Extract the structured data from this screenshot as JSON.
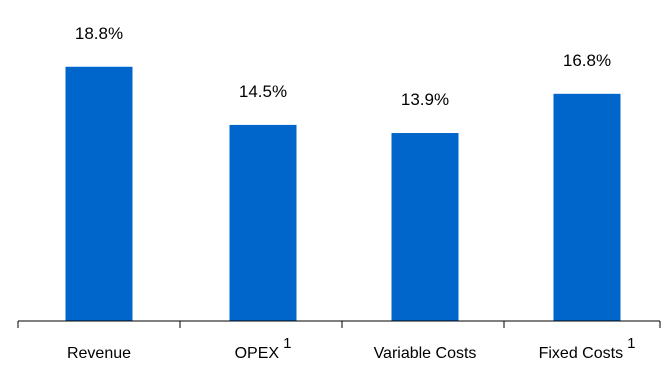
{
  "chart_data": {
    "type": "bar",
    "categories": [
      "Revenue",
      "OPEX",
      "Variable Costs",
      "Fixed Costs"
    ],
    "category_footnotes": [
      "",
      "1",
      "",
      "1"
    ],
    "values": [
      18.8,
      14.5,
      13.9,
      16.8
    ],
    "value_labels": [
      "18.8%",
      "14.5%",
      "13.9%",
      "16.8%"
    ],
    "unit": "%",
    "bar_color": "#0066CC",
    "ylim": [
      0,
      20
    ],
    "grid": false,
    "legend": "none"
  }
}
